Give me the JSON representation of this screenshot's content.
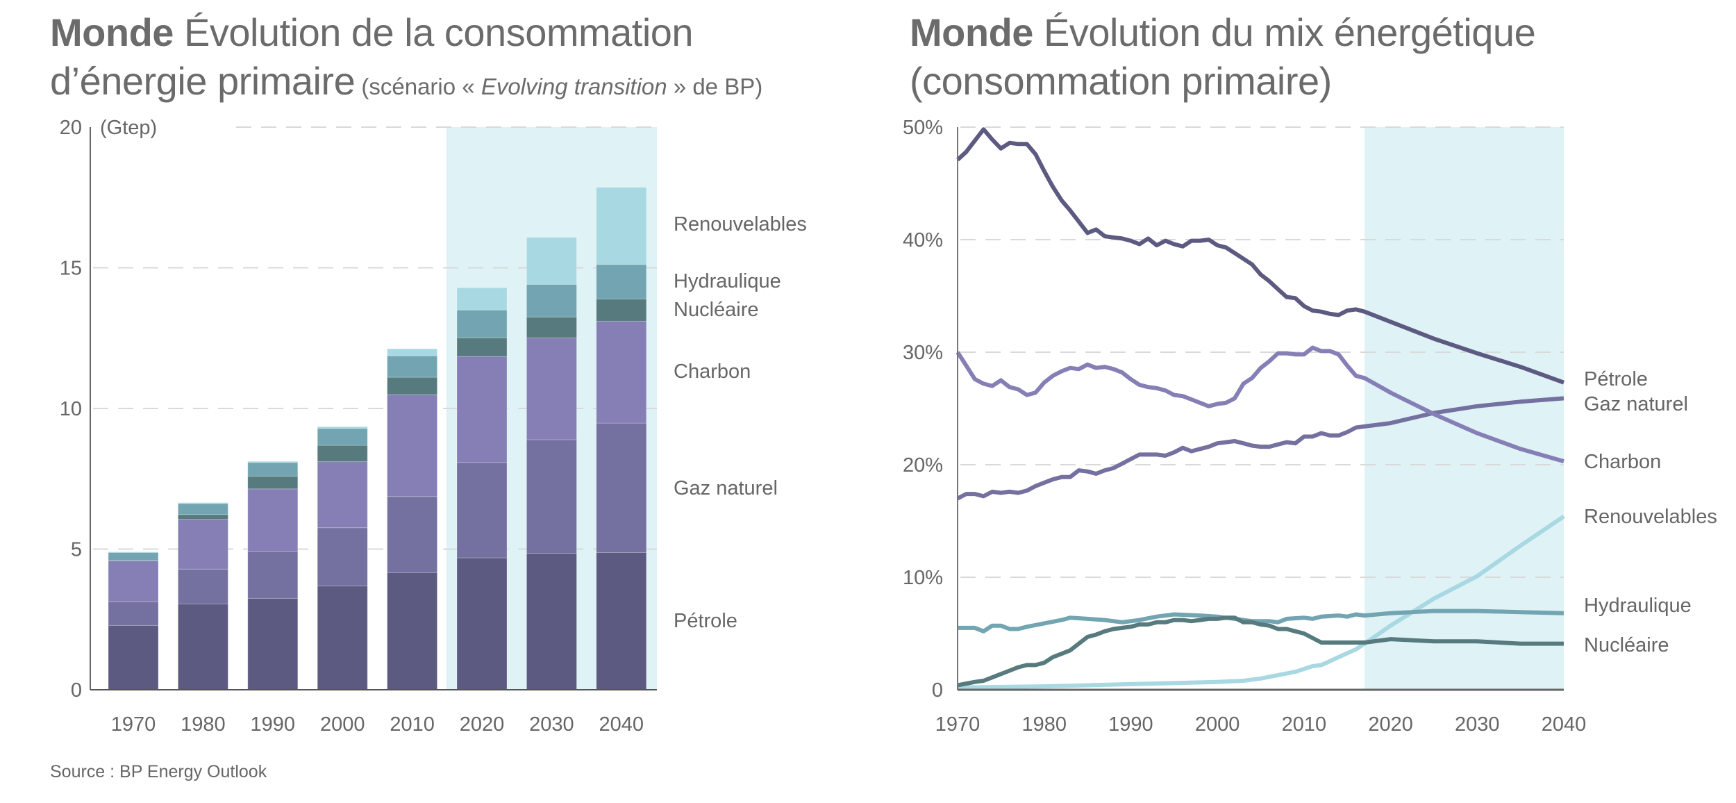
{
  "source": "Source : BP Energy Outlook",
  "colors": {
    "petrole": "#5c5a80",
    "gaz": "#74709f",
    "charbon": "#857fb5",
    "nucleaire": "#567a7e",
    "hydraulique": "#72a5b1",
    "renouvelables": "#a8d8e2",
    "projection_shade": "#dff2f6",
    "text": "#666666",
    "grid": "#d9d9d9"
  },
  "left": {
    "title_bold": "Monde",
    "title_rest": " Évolution de la consommation d’énergie primaire",
    "subtitle_pre": " (scénario « ",
    "subtitle_italic": "Evolving transition",
    "subtitle_post": " » de BP)"
  },
  "right": {
    "title_bold": "Monde",
    "title_rest": " Évolution du mix énergétique (consommation primaire)"
  },
  "chart_data": [
    {
      "type": "bar",
      "stacked": true,
      "title": "Monde Évolution de la consommation d’énergie primaire (scénario « Evolving transition » de BP)",
      "xlabel": "",
      "ylabel": "(Gtep)",
      "ylim": [
        0,
        20
      ],
      "yticks": [
        0,
        5,
        10,
        15,
        20
      ],
      "ytick_labels": [
        "0",
        "5",
        "10",
        "15",
        "20"
      ],
      "grid": true,
      "projection_from_category": "2020",
      "categories": [
        "1970",
        "1980",
        "1990",
        "2000",
        "2010",
        "2020",
        "2030",
        "2040"
      ],
      "series": [
        {
          "name": "Pétrole",
          "key": "petrole",
          "values": [
            2.29,
            3.05,
            3.25,
            3.69,
            4.16,
            4.69,
            4.85,
            4.88
          ]
        },
        {
          "name": "Gaz naturel",
          "key": "gaz",
          "values": [
            0.84,
            1.24,
            1.67,
            2.07,
            2.71,
            3.39,
            4.04,
            4.6
          ]
        },
        {
          "name": "Charbon",
          "key": "charbon",
          "values": [
            1.45,
            1.77,
            2.22,
            2.35,
            3.62,
            3.77,
            3.62,
            3.62
          ]
        },
        {
          "name": "Nucléaire",
          "key": "nucleaire",
          "values": [
            0.02,
            0.17,
            0.45,
            0.58,
            0.62,
            0.66,
            0.74,
            0.79
          ]
        },
        {
          "name": "Hydraulique",
          "key": "hydraulique",
          "values": [
            0.28,
            0.39,
            0.49,
            0.6,
            0.76,
            0.99,
            1.16,
            1.23
          ]
        },
        {
          "name": "Renouvelables",
          "key": "renouvelables",
          "values": [
            0.02,
            0.03,
            0.04,
            0.06,
            0.25,
            0.79,
            1.67,
            2.74
          ]
        }
      ],
      "legend": "right",
      "legend_order": [
        "Renouvelables",
        "Hydraulique",
        "Nucléaire",
        "Charbon",
        "Gaz naturel",
        "Pétrole"
      ]
    },
    {
      "type": "line",
      "title": "Monde Évolution du mix énergétique (consommation primaire)",
      "xlabel": "",
      "ylabel": "",
      "xlim": [
        1970,
        2040
      ],
      "ylim": [
        0,
        50
      ],
      "xticks": [
        1970,
        1980,
        1990,
        2000,
        2010,
        2020,
        2030,
        2040
      ],
      "yticks": [
        0,
        10,
        20,
        30,
        40,
        50
      ],
      "ytick_labels": [
        "0",
        "10%",
        "20%",
        "30%",
        "40%",
        "50%"
      ],
      "grid": true,
      "projection_from_year": 2017,
      "legend": "right",
      "series": [
        {
          "name": "Pétrole",
          "key": "petrole",
          "x": [
            1970,
            1971,
            1972,
            1973,
            1974,
            1975,
            1976,
            1977,
            1978,
            1979,
            1980,
            1981,
            1982,
            1983,
            1984,
            1985,
            1986,
            1987,
            1988,
            1989,
            1990,
            1991,
            1992,
            1993,
            1994,
            1995,
            1996,
            1997,
            1998,
            1999,
            2000,
            2001,
            2002,
            2003,
            2004,
            2005,
            2006,
            2007,
            2008,
            2009,
            2010,
            2011,
            2012,
            2013,
            2014,
            2015,
            2016,
            2017,
            2020,
            2025,
            2030,
            2035,
            2040
          ],
          "y": [
            47.1,
            47.8,
            48.8,
            49.8,
            48.9,
            48.1,
            48.6,
            48.5,
            48.5,
            47.6,
            46.1,
            44.7,
            43.5,
            42.6,
            41.6,
            40.6,
            40.9,
            40.3,
            40.2,
            40.1,
            39.9,
            39.6,
            40.1,
            39.5,
            39.9,
            39.6,
            39.4,
            39.9,
            39.9,
            40.0,
            39.5,
            39.3,
            38.8,
            38.3,
            37.8,
            36.9,
            36.3,
            35.6,
            34.9,
            34.8,
            34.1,
            33.7,
            33.6,
            33.4,
            33.3,
            33.7,
            33.8,
            33.6,
            32.7,
            31.2,
            29.9,
            28.7,
            27.3
          ]
        },
        {
          "name": "Gaz naturel",
          "key": "gaz",
          "x": [
            1970,
            1971,
            1972,
            1973,
            1974,
            1975,
            1976,
            1977,
            1978,
            1979,
            1980,
            1981,
            1982,
            1983,
            1984,
            1985,
            1986,
            1987,
            1988,
            1989,
            1990,
            1991,
            1992,
            1993,
            1994,
            1995,
            1996,
            1997,
            1998,
            1999,
            2000,
            2001,
            2002,
            2003,
            2004,
            2005,
            2006,
            2007,
            2008,
            2009,
            2010,
            2011,
            2012,
            2013,
            2014,
            2015,
            2016,
            2017,
            2020,
            2025,
            2030,
            2035,
            2040
          ],
          "y": [
            17.0,
            17.4,
            17.4,
            17.2,
            17.6,
            17.5,
            17.6,
            17.5,
            17.7,
            18.1,
            18.4,
            18.7,
            18.9,
            18.9,
            19.5,
            19.4,
            19.2,
            19.5,
            19.7,
            20.1,
            20.5,
            20.9,
            20.9,
            20.9,
            20.8,
            21.1,
            21.5,
            21.2,
            21.4,
            21.6,
            21.9,
            22.0,
            22.1,
            21.9,
            21.7,
            21.6,
            21.6,
            21.8,
            22.0,
            21.9,
            22.5,
            22.5,
            22.8,
            22.6,
            22.6,
            22.9,
            23.3,
            23.4,
            23.7,
            24.6,
            25.2,
            25.6,
            25.9
          ]
        },
        {
          "name": "Charbon",
          "key": "charbon",
          "x": [
            1970,
            1971,
            1972,
            1973,
            1974,
            1975,
            1976,
            1977,
            1978,
            1979,
            1980,
            1981,
            1982,
            1983,
            1984,
            1985,
            1986,
            1987,
            1988,
            1989,
            1990,
            1991,
            1992,
            1993,
            1994,
            1995,
            1996,
            1997,
            1998,
            1999,
            2000,
            2001,
            2002,
            2003,
            2004,
            2005,
            2006,
            2007,
            2008,
            2009,
            2010,
            2011,
            2012,
            2013,
            2014,
            2015,
            2016,
            2017,
            2020,
            2025,
            2030,
            2035,
            2040
          ],
          "y": [
            30.0,
            28.8,
            27.6,
            27.2,
            27.0,
            27.5,
            26.9,
            26.7,
            26.2,
            26.4,
            27.3,
            27.9,
            28.3,
            28.6,
            28.5,
            28.9,
            28.6,
            28.7,
            28.5,
            28.2,
            27.6,
            27.1,
            26.9,
            26.8,
            26.6,
            26.2,
            26.1,
            25.8,
            25.5,
            25.2,
            25.4,
            25.5,
            25.9,
            27.2,
            27.7,
            28.6,
            29.2,
            29.9,
            29.9,
            29.8,
            29.8,
            30.4,
            30.1,
            30.1,
            29.8,
            28.8,
            27.9,
            27.7,
            26.4,
            24.5,
            22.8,
            21.4,
            20.3
          ]
        },
        {
          "name": "Renouvelables",
          "key": "renouvelables",
          "x": [
            1970,
            1980,
            1990,
            2000,
            2003,
            2005,
            2007,
            2009,
            2011,
            2012,
            2014,
            2016,
            2017,
            2020,
            2025,
            2030,
            2035,
            2040
          ],
          "y": [
            0.2,
            0.3,
            0.5,
            0.7,
            0.8,
            1.0,
            1.3,
            1.6,
            2.1,
            2.2,
            2.9,
            3.6,
            4.1,
            5.7,
            8.1,
            10.1,
            12.8,
            15.4
          ]
        },
        {
          "name": "Hydraulique",
          "key": "hydraulique",
          "x": [
            1970,
            1972,
            1973,
            1974,
            1975,
            1976,
            1977,
            1978,
            1980,
            1982,
            1983,
            1985,
            1987,
            1989,
            1991,
            1993,
            1995,
            1998,
            2000,
            2002,
            2004,
            2006,
            2007,
            2008,
            2010,
            2011,
            2012,
            2014,
            2015,
            2016,
            2017,
            2020,
            2025,
            2030,
            2035,
            2040
          ],
          "y": [
            5.5,
            5.5,
            5.2,
            5.7,
            5.7,
            5.4,
            5.4,
            5.6,
            5.9,
            6.2,
            6.4,
            6.3,
            6.2,
            6.0,
            6.2,
            6.5,
            6.7,
            6.6,
            6.5,
            6.3,
            6.1,
            6.1,
            6.0,
            6.3,
            6.4,
            6.3,
            6.5,
            6.6,
            6.5,
            6.7,
            6.6,
            6.8,
            7.0,
            7.0,
            6.9,
            6.8
          ]
        },
        {
          "name": "Nucléaire",
          "key": "nucleaire",
          "x": [
            1970,
            1972,
            1973,
            1974,
            1975,
            1976,
            1977,
            1978,
            1979,
            1980,
            1981,
            1982,
            1983,
            1984,
            1985,
            1986,
            1987,
            1988,
            1989,
            1990,
            1991,
            1992,
            1993,
            1994,
            1995,
            1996,
            1997,
            1998,
            1999,
            2000,
            2001,
            2002,
            2003,
            2004,
            2005,
            2006,
            2007,
            2008,
            2009,
            2010,
            2011,
            2012,
            2014,
            2016,
            2017,
            2020,
            2025,
            2030,
            2035,
            2040
          ],
          "y": [
            0.4,
            0.7,
            0.8,
            1.1,
            1.4,
            1.7,
            2.0,
            2.2,
            2.2,
            2.4,
            2.9,
            3.2,
            3.5,
            4.1,
            4.7,
            4.9,
            5.2,
            5.4,
            5.5,
            5.6,
            5.8,
            5.8,
            6.0,
            6.0,
            6.2,
            6.2,
            6.1,
            6.2,
            6.3,
            6.3,
            6.4,
            6.4,
            6.0,
            6.0,
            5.8,
            5.7,
            5.4,
            5.4,
            5.2,
            5.0,
            4.6,
            4.2,
            4.2,
            4.2,
            4.2,
            4.5,
            4.3,
            4.3,
            4.1,
            4.1
          ]
        }
      ],
      "legend_order": [
        "Pétrole",
        "Gaz naturel",
        "Charbon",
        "Renouvelables",
        "Hydraulique",
        "Nucléaire"
      ]
    }
  ]
}
